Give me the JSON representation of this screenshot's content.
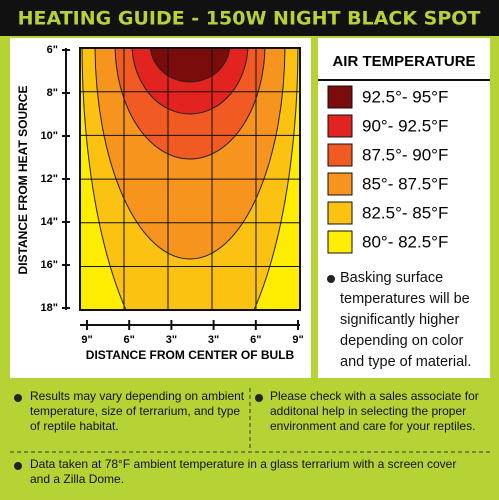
{
  "header": {
    "title": "HEATING GUIDE - 150W NIGHT BLACK SPOT"
  },
  "chart": {
    "y_axis_title": "DISTANCE FROM HEAT SOURCE",
    "x_axis_title": "DISTANCE FROM CENTER OF BULB",
    "y_labels": [
      "6\"",
      "8\"",
      "10\"",
      "12\"",
      "14\"",
      "16\"",
      "18\""
    ],
    "x_labels": [
      "9\"",
      "6\"",
      "3\"",
      "3\"",
      "6\"",
      "9\""
    ]
  },
  "legend": {
    "title": "AIR TEMPERATURE",
    "items": [
      {
        "label": "92.5°- 95°F",
        "color": "#7b0c0c"
      },
      {
        "label": "90°- 92.5°F",
        "color": "#e2231f"
      },
      {
        "label": "87.5°- 90°F",
        "color": "#f15a22"
      },
      {
        "label": "85°- 87.5°F",
        "color": "#f7941d"
      },
      {
        "label": "82.5°- 85°F",
        "color": "#fcc212"
      },
      {
        "label": "80°- 82.5°F",
        "color": "#ffed00"
      }
    ],
    "note": "Basking surface temperatures will be significantly higher depending on color and type of material."
  },
  "notes": [
    "Results may vary depending on ambient temperature, size of terrarium, and type of reptile habitat.",
    "Please check with a sales associate for additonal help in selecting the proper environment and care for your reptiles.",
    "Data taken at 78°F ambient temperature in a glass terrarium with a screen cover and a Zilla Dome."
  ]
}
